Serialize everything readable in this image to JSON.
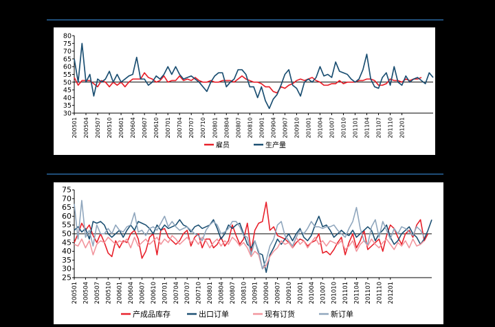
{
  "colors": {
    "red": "#e8202a",
    "navy": "#1b4f72",
    "pink": "#f2959d",
    "grayblue": "#8fa6bd",
    "rule": "#1f4e79"
  },
  "chart_data": [
    {
      "type": "line",
      "ylim": [
        30,
        80
      ],
      "yticks": [
        30,
        35,
        40,
        45,
        50,
        55,
        60,
        65,
        70,
        75,
        80
      ],
      "reference_line": 50,
      "grid": false,
      "legend_position": "bottom",
      "x_tick_labels": [
        "200501",
        "200504",
        "200507",
        "200510",
        "200601",
        "200604",
        "200607",
        "200610",
        "200701",
        "200704",
        "200707",
        "200710",
        "200801",
        "200804",
        "200807",
        "200810",
        "200901",
        "200904",
        "200907",
        "200910",
        "201001",
        "201004",
        "201007",
        "201010",
        "201101",
        "201104",
        "201107",
        "201110",
        "201201"
      ],
      "series": [
        {
          "name": "雇员",
          "color": "#e8202a",
          "values": [
            53,
            48,
            51,
            51,
            51,
            49,
            47,
            51,
            50,
            47,
            50,
            48,
            50,
            47,
            50,
            52,
            52,
            52,
            56,
            53,
            52,
            50,
            51,
            54,
            50,
            51,
            51,
            54,
            51,
            52,
            51,
            53,
            51,
            50,
            50,
            51,
            50,
            50,
            51,
            51,
            51,
            50,
            52,
            54,
            52,
            51,
            50,
            50,
            49,
            47,
            47,
            44,
            43,
            47,
            46,
            48,
            49,
            51,
            52,
            51,
            52,
            53,
            51,
            50,
            48,
            48,
            49,
            49,
            51,
            49,
            50,
            50,
            50,
            51,
            51,
            52,
            52,
            51,
            48,
            48,
            49,
            52,
            51,
            51,
            50,
            52,
            51,
            52,
            52,
            53
          ]
        },
        {
          "name": "生产量",
          "color": "#1b4f72",
          "values": [
            65,
            50,
            75,
            50,
            55,
            41,
            52,
            50,
            52,
            57,
            50,
            55,
            50,
            52,
            54,
            55,
            66,
            52,
            52,
            48,
            50,
            54,
            52,
            55,
            60,
            55,
            60,
            55,
            52,
            53,
            54,
            52,
            50,
            47,
            44,
            50,
            54,
            56,
            56,
            47,
            50,
            52,
            58,
            58,
            55,
            47,
            47,
            40,
            47,
            38,
            33,
            39,
            42,
            48,
            55,
            58,
            48,
            46,
            41,
            50,
            52,
            50,
            53,
            60,
            54,
            55,
            53,
            63,
            57,
            56,
            55,
            52,
            50,
            52,
            58,
            68,
            52,
            47,
            46,
            53,
            56,
            48,
            60,
            50,
            48,
            54,
            50,
            52,
            53,
            51,
            49,
            56,
            53
          ]
        }
      ]
    },
    {
      "type": "line",
      "ylim": [
        25,
        75
      ],
      "yticks": [
        25,
        30,
        35,
        40,
        45,
        50,
        55,
        60,
        65,
        70,
        75
      ],
      "reference_line": 50,
      "grid": false,
      "legend_position": "bottom",
      "x_tick_labels": [
        "200501",
        "200504",
        "200507",
        "200510",
        "200601",
        "200604",
        "200607",
        "200610",
        "200701",
        "200704",
        "200707",
        "200710",
        "200801",
        "200804",
        "200807",
        "200810",
        "200901",
        "200904",
        "200907",
        "200910",
        "201001",
        "201004",
        "201007",
        "201010",
        "201101",
        "201104",
        "201107",
        "201110",
        "201201"
      ],
      "series": [
        {
          "name": "产成品库存",
          "color": "#e8202a",
          "values": [
            45,
            50,
            56,
            52,
            55,
            49,
            45,
            50,
            45,
            39,
            37,
            46,
            42,
            46,
            45,
            50,
            52,
            47,
            36,
            40,
            48,
            50,
            38,
            52,
            53,
            48,
            46,
            44,
            46,
            50,
            52,
            43,
            48,
            50,
            42,
            47,
            47,
            42,
            44,
            48,
            43,
            46,
            55,
            49,
            44,
            47,
            56,
            40,
            52,
            56,
            57,
            68,
            52,
            54,
            49,
            48,
            47,
            45,
            42,
            45,
            47,
            46,
            43,
            45,
            46,
            50,
            39,
            40,
            38,
            41,
            45,
            48,
            38,
            45,
            50,
            42,
            46,
            52,
            41,
            43,
            45,
            47,
            40,
            49,
            55,
            53,
            48,
            44,
            50,
            52,
            48,
            55,
            58,
            46,
            50
          ]
        },
        {
          "name": "出口订单",
          "color": "#1b4f72",
          "values": [
            52,
            54,
            51,
            53,
            47,
            57,
            56,
            57,
            55,
            50,
            48,
            50,
            52,
            48,
            52,
            55,
            52,
            57,
            56,
            55,
            53,
            50,
            55,
            52,
            55,
            53,
            54,
            55,
            58,
            55,
            54,
            51,
            54,
            55,
            53,
            54,
            55,
            58,
            53,
            47,
            50,
            55,
            53,
            55,
            56,
            50,
            44,
            42,
            46,
            39,
            38,
            28,
            38,
            42,
            47,
            44,
            47,
            50,
            46,
            50,
            53,
            48,
            46,
            49,
            55,
            60,
            54,
            55,
            52,
            48,
            50,
            52,
            50,
            49,
            52,
            48,
            50,
            52,
            54,
            52,
            46,
            50,
            52,
            55,
            48,
            44,
            46,
            50,
            52,
            54,
            50,
            48,
            44,
            47,
            52,
            58
          ]
        },
        {
          "name": "现有订货",
          "color": "#f2959d",
          "values": [
            44,
            43,
            47,
            42,
            46,
            38,
            44,
            46,
            45,
            48,
            46,
            44,
            46,
            45,
            47,
            42,
            48,
            43,
            45,
            47,
            44,
            46,
            48,
            44,
            47,
            45,
            49,
            47,
            44,
            46,
            48,
            45,
            47,
            44,
            48,
            46,
            42,
            45,
            47,
            43,
            46,
            44,
            48,
            46,
            43,
            45,
            42,
            37,
            40,
            38,
            30,
            32,
            37,
            40,
            42,
            46,
            44,
            45,
            42,
            48,
            44,
            46,
            42,
            45,
            48,
            44,
            46,
            43,
            46,
            45,
            44,
            46,
            41,
            43,
            46,
            40,
            44,
            46,
            43,
            47,
            44,
            42,
            45,
            47,
            44,
            41,
            45,
            43,
            46,
            42,
            47,
            43,
            44,
            46
          ]
        },
        {
          "name": "新订单",
          "color": "#8fa6bd",
          "values": [
            67,
            47,
            69,
            48,
            52,
            43,
            55,
            50,
            50,
            53,
            50,
            55,
            52,
            51,
            54,
            55,
            62,
            51,
            52,
            49,
            53,
            54,
            52,
            56,
            60,
            54,
            57,
            54,
            52,
            53,
            54,
            52,
            50,
            49,
            46,
            52,
            55,
            57,
            55,
            50,
            51,
            53,
            57,
            57,
            54,
            49,
            48,
            38,
            46,
            40,
            30,
            35,
            43,
            47,
            55,
            57,
            49,
            46,
            43,
            48,
            52,
            50,
            53,
            57,
            54,
            54,
            53,
            54,
            54,
            55,
            52,
            50,
            48,
            53,
            57,
            65,
            53,
            46,
            44,
            54,
            58,
            48,
            57,
            52,
            47,
            53,
            50,
            54,
            53,
            51,
            49,
            54,
            52,
            48
          ]
        }
      ]
    }
  ]
}
